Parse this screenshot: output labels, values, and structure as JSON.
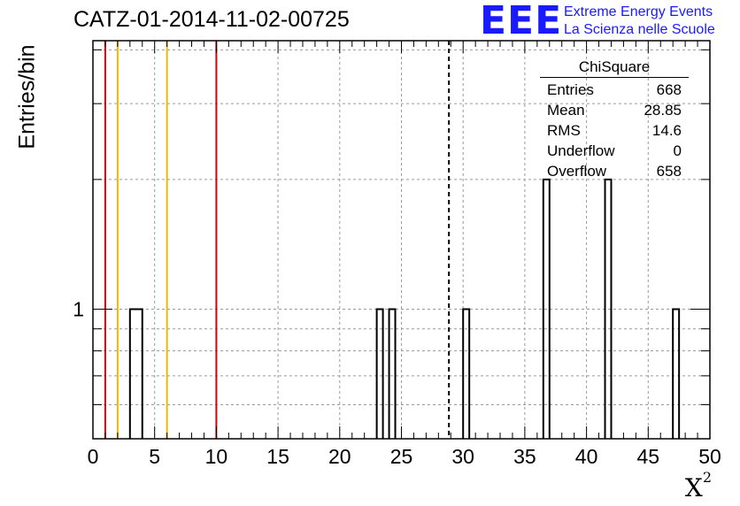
{
  "chart_data": {
    "type": "bar",
    "title": "CATZ-01-2014-11-02-00725",
    "xlabel": "X",
    "xlabel_superscript": "2",
    "ylabel": "Entries/bin",
    "xlim": [
      0,
      50
    ],
    "xticks": [
      "0",
      "5",
      "10",
      "15",
      "20",
      "25",
      "30",
      "35",
      "40",
      "45",
      "50"
    ],
    "yticks": [
      "1"
    ],
    "y_scale": "log",
    "ylim": [
      0.5,
      4.2
    ],
    "grid": true,
    "bins": [
      {
        "x0": 3.0,
        "x1": 4.0,
        "value": 1
      },
      {
        "x0": 23.0,
        "x1": 23.5,
        "value": 1
      },
      {
        "x0": 24.0,
        "x1": 24.5,
        "value": 1
      },
      {
        "x0": 30.0,
        "x1": 30.5,
        "value": 1
      },
      {
        "x0": 36.5,
        "x1": 37.0,
        "value": 2
      },
      {
        "x0": 41.5,
        "x1": 42.0,
        "value": 2
      },
      {
        "x0": 47.0,
        "x1": 47.5,
        "value": 1
      }
    ],
    "vertical_lines": [
      {
        "x": 1,
        "color": "#dd0000",
        "style": "solid"
      },
      {
        "x": 2,
        "color": "#f0b800",
        "style": "solid"
      },
      {
        "x": 6,
        "color": "#f0b800",
        "style": "solid"
      },
      {
        "x": 10,
        "color": "#dd0000",
        "style": "solid"
      },
      {
        "x": 28.85,
        "color": "#000000",
        "style": "dashed"
      }
    ],
    "stats": {
      "title": "ChiSquare",
      "rows": [
        {
          "label": "Entries",
          "value": "668"
        },
        {
          "label": "Mean",
          "value": "28.85"
        },
        {
          "label": "RMS",
          "value": "14.6"
        },
        {
          "label": "Underflow",
          "value": "0"
        },
        {
          "label": "Overflow",
          "value": "658"
        }
      ]
    }
  },
  "logo": {
    "mark": "EEE",
    "line1": "Extreme Energy Events",
    "line2": "La Scienza nelle Scuole"
  }
}
